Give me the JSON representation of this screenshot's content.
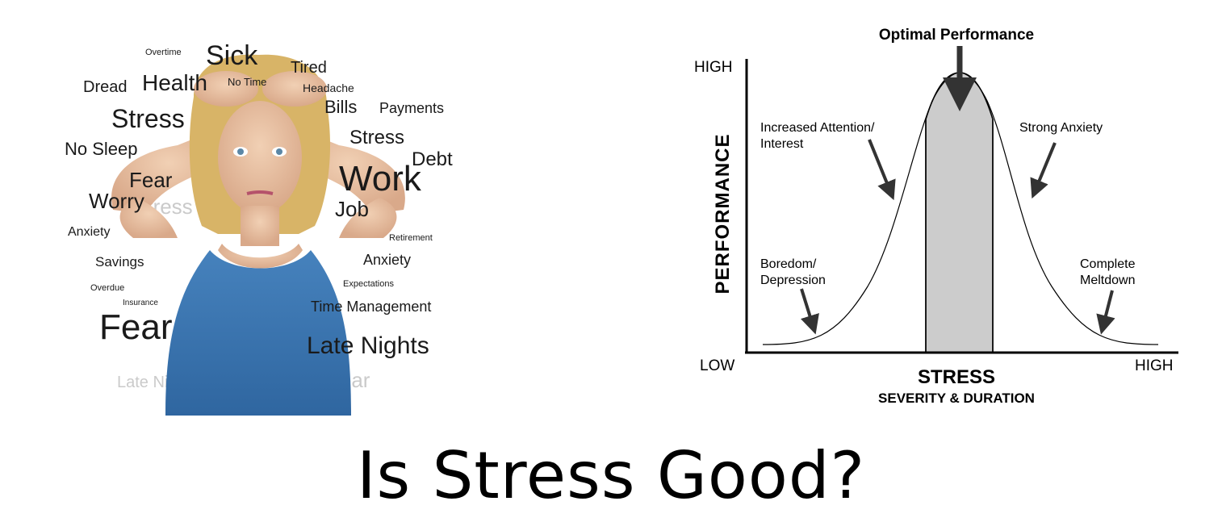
{
  "slide": {
    "title": "Is Stress Good?"
  },
  "photo": {
    "words": [
      "Overtime",
      "Sick",
      "Dread",
      "Health",
      "No Time",
      "Tired",
      "Headache",
      "Bills",
      "Payments",
      "Stress",
      "Stress",
      "No Sleep",
      "Debt",
      "Fear",
      "Work",
      "Worry",
      "Job",
      "Anxiety",
      "Retirement",
      "Savings",
      "Anxiety",
      "Expectations",
      "Overdue",
      "Insurance",
      "Time Management",
      "Fear",
      "Late Nights",
      "Late Nights",
      "Fear"
    ],
    "colors": {
      "shirt": "#3b76b0",
      "hair": "#d8b467",
      "skin": "#e9c4a5",
      "word_text": "#1a1a1a",
      "word_blur": "#b5b5b5"
    }
  },
  "chart": {
    "top_label": "Optimal Performance",
    "y_axis_label": "PERFORMANCE",
    "y_high": "HIGH",
    "x_low": "LOW",
    "x_high": "HIGH",
    "x_axis_title": "STRESS",
    "x_axis_subtitle": "SEVERITY & DURATION",
    "annotations": {
      "increased_attention_line1": "Increased Attention/",
      "increased_attention_line2": "Interest",
      "strong_anxiety": "Strong Anxiety",
      "boredom_line1": "Boredom/",
      "boredom_line2": "Depression",
      "meltdown_line1": "Complete",
      "meltdown_line2": "Meltdown"
    },
    "colors": {
      "optimal_zone_fill": "#cccccc",
      "ink": "#000000",
      "arrow": "#333333"
    }
  },
  "chart_data": {
    "type": "line",
    "title": "Optimal Performance",
    "xlabel": "STRESS SEVERITY & DURATION",
    "ylabel": "PERFORMANCE",
    "x_ticks": [
      "LOW",
      "HIGH"
    ],
    "y_ticks": [
      "HIGH"
    ],
    "shape": "bell curve",
    "highlighted_region": "Optimal Performance",
    "grid": false
  }
}
